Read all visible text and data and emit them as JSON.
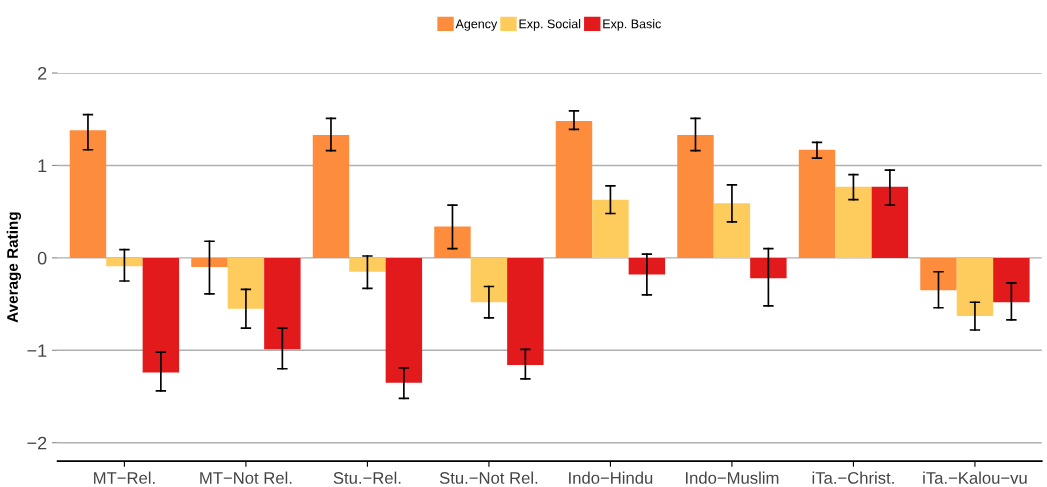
{
  "chart_data": {
    "type": "bar",
    "ylabel": "Average Rating",
    "categories": [
      "MT−Rel.",
      "MT−Not Rel.",
      "Stu.−Rel.",
      "Stu.−Not Rel.",
      "Indo−Hindu",
      "Indo−Muslim",
      "iTa.−Christ.",
      "iTa.−Kalou−vu"
    ],
    "series": [
      {
        "name": "Agency",
        "color": "#fd8d3c",
        "values": [
          1.38,
          -0.1,
          1.33,
          0.34,
          1.48,
          1.33,
          1.17,
          -0.35
        ],
        "errors": [
          [
            1.17,
            1.55
          ],
          [
            -0.39,
            0.18
          ],
          [
            1.16,
            1.51
          ],
          [
            0.1,
            0.57
          ],
          [
            1.39,
            1.59
          ],
          [
            1.16,
            1.51
          ],
          [
            1.08,
            1.25
          ],
          [
            -0.54,
            -0.15
          ]
        ]
      },
      {
        "name": "Exp. Social",
        "color": "#fecc5c",
        "values": [
          -0.09,
          -0.55,
          -0.15,
          -0.48,
          0.63,
          0.59,
          0.77,
          -0.63
        ],
        "errors": [
          [
            -0.25,
            0.09
          ],
          [
            -0.76,
            -0.34
          ],
          [
            -0.33,
            0.02
          ],
          [
            -0.65,
            -0.31
          ],
          [
            0.48,
            0.78
          ],
          [
            0.39,
            0.79
          ],
          [
            0.63,
            0.9
          ],
          [
            -0.78,
            -0.48
          ]
        ]
      },
      {
        "name": "Exp. Basic",
        "color": "#e31a1c",
        "values": [
          -1.24,
          -0.99,
          -1.35,
          -1.16,
          -0.18,
          -0.22,
          0.77,
          -0.48
        ],
        "errors": [
          [
            -1.44,
            -1.02
          ],
          [
            -1.2,
            -0.76
          ],
          [
            -1.52,
            -1.19
          ],
          [
            -1.31,
            -0.99
          ],
          [
            -0.4,
            0.04
          ],
          [
            -0.52,
            0.1
          ],
          [
            0.57,
            0.95
          ],
          [
            -0.67,
            -0.27
          ]
        ]
      }
    ],
    "ylim": [
      -2.2,
      2
    ],
    "yticks": [
      {
        "value": -2,
        "label": "−2"
      },
      {
        "value": -1,
        "label": "−1"
      },
      0,
      1,
      2
    ],
    "grid": "y",
    "legend": "top"
  }
}
